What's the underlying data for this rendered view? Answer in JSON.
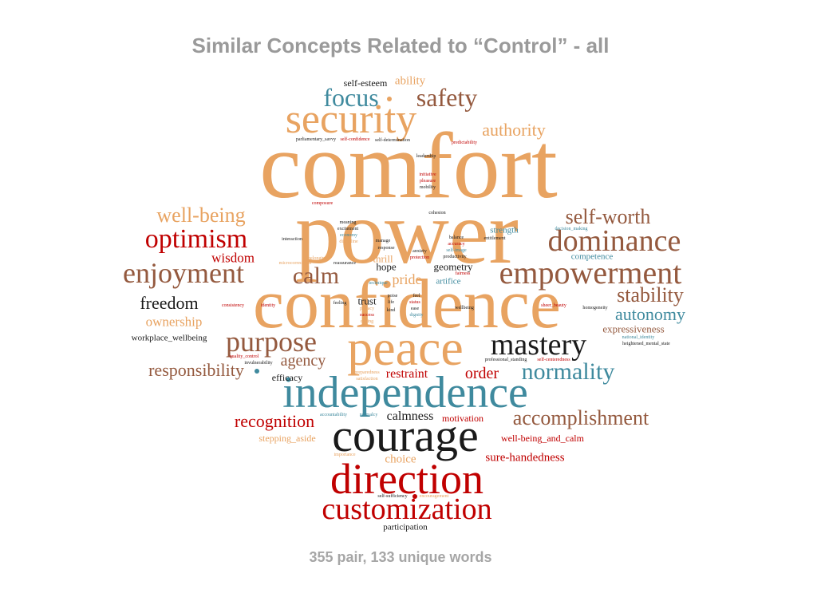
{
  "title": "Similar Concepts Related to “Control” - all",
  "footer": "355 pair, 133 unique words",
  "colors": {
    "orange": "#e8a361",
    "brown": "#94593e",
    "red": "#c00000",
    "teal": "#3f8a9e",
    "black": "#1a1a1a"
  },
  "words": [
    {
      "text": "comfort",
      "weight": 120,
      "color": "orange"
    },
    {
      "text": "power",
      "weight": 110,
      "color": "orange"
    },
    {
      "text": "confidence",
      "weight": 90,
      "color": "orange"
    },
    {
      "text": "peace",
      "weight": 64,
      "color": "orange"
    },
    {
      "text": "independence",
      "weight": 56,
      "color": "teal"
    },
    {
      "text": "courage",
      "weight": 58,
      "color": "black"
    },
    {
      "text": "security",
      "weight": 52,
      "color": "orange"
    },
    {
      "text": "direction",
      "weight": 52,
      "color": "red"
    },
    {
      "text": "empowerment",
      "weight": 40,
      "color": "brown"
    },
    {
      "text": "customization",
      "weight": 38,
      "color": "red"
    },
    {
      "text": "mastery",
      "weight": 38,
      "color": "black"
    },
    {
      "text": "dominance",
      "weight": 38,
      "color": "brown"
    },
    {
      "text": "enjoyment",
      "weight": 36,
      "color": "brown"
    },
    {
      "text": "optimism",
      "weight": 34,
      "color": "red"
    },
    {
      "text": "purpose",
      "weight": 34,
      "color": "brown"
    },
    {
      "text": "focus",
      "weight": 32,
      "color": "teal"
    },
    {
      "text": "safety",
      "weight": 32,
      "color": "brown"
    },
    {
      "text": "calm",
      "weight": 30,
      "color": "brown"
    },
    {
      "text": "normality",
      "weight": 30,
      "color": "teal"
    },
    {
      "text": "self-worth",
      "weight": 26,
      "color": "brown"
    },
    {
      "text": "well-being",
      "weight": 26,
      "color": "orange"
    },
    {
      "text": "stability",
      "weight": 26,
      "color": "brown"
    },
    {
      "text": "accomplishment",
      "weight": 26,
      "color": "brown"
    },
    {
      "text": "autonomy",
      "weight": 22,
      "color": "teal"
    },
    {
      "text": "recognition",
      "weight": 22,
      "color": "red"
    },
    {
      "text": "authority",
      "weight": 22,
      "color": "orange"
    },
    {
      "text": "freedom",
      "weight": 22,
      "color": "black"
    },
    {
      "text": "responsibility",
      "weight": 22,
      "color": "brown"
    },
    {
      "text": "agency",
      "weight": 20,
      "color": "brown"
    },
    {
      "text": "calmness",
      "weight": 16,
      "color": "black"
    },
    {
      "text": "order",
      "weight": 20,
      "color": "red"
    },
    {
      "text": "pride",
      "weight": 18,
      "color": "orange"
    },
    {
      "text": "ownership",
      "weight": 17,
      "color": "orange"
    },
    {
      "text": "wisdom",
      "weight": 17,
      "color": "red"
    },
    {
      "text": "restraint",
      "weight": 16,
      "color": "red"
    },
    {
      "text": "choice",
      "weight": 15,
      "color": "orange"
    },
    {
      "text": "sure-handedness",
      "weight": 15,
      "color": "red"
    },
    {
      "text": "ability",
      "weight": 15,
      "color": "orange"
    },
    {
      "text": "self-esteem",
      "weight": 12,
      "color": "black"
    },
    {
      "text": "trust",
      "weight": 13,
      "color": "black"
    },
    {
      "text": "hope",
      "weight": 13,
      "color": "black"
    },
    {
      "text": "thrill",
      "weight": 13,
      "color": "orange"
    },
    {
      "text": "geometry",
      "weight": 13,
      "color": "black"
    },
    {
      "text": "expressiveness",
      "weight": 13,
      "color": "brown"
    },
    {
      "text": "efficacy",
      "weight": 12,
      "color": "black"
    },
    {
      "text": "motivation",
      "weight": 12,
      "color": "red"
    },
    {
      "text": "stepping_aside",
      "weight": 12,
      "color": "orange"
    },
    {
      "text": "well-being_and_calm",
      "weight": 12,
      "color": "red"
    },
    {
      "text": "strength",
      "weight": 11,
      "color": "teal"
    },
    {
      "text": "competence",
      "weight": 11,
      "color": "teal"
    },
    {
      "text": "artifice",
      "weight": 11,
      "color": "teal"
    },
    {
      "text": "workplace_wellbeing",
      "weight": 11,
      "color": "black"
    },
    {
      "text": "participation",
      "weight": 11,
      "color": "black"
    },
    {
      "text": "parliamentary_savvy",
      "weight": 6,
      "color": "black"
    },
    {
      "text": "self-confidence",
      "weight": 6,
      "color": "red"
    },
    {
      "text": "self-determination",
      "weight": 6,
      "color": "black"
    },
    {
      "text": "predictability",
      "weight": 6,
      "color": "red"
    },
    {
      "text": "leadership",
      "weight": 6,
      "color": "black"
    },
    {
      "text": "initiative",
      "weight": 6,
      "color": "red"
    },
    {
      "text": "pleasure",
      "weight": 6,
      "color": "red"
    },
    {
      "text": "mobility",
      "weight": 6,
      "color": "black"
    },
    {
      "text": "composure",
      "weight": 6,
      "color": "red"
    },
    {
      "text": "cohesion",
      "weight": 6,
      "color": "black"
    },
    {
      "text": "meaning",
      "weight": 6,
      "color": "black"
    },
    {
      "text": "excitement",
      "weight": 6,
      "color": "black"
    },
    {
      "text": "economy",
      "weight": 6,
      "color": "teal"
    },
    {
      "text": "discipline",
      "weight": 6,
      "color": "orange"
    },
    {
      "text": "interaction",
      "weight": 6,
      "color": "black"
    },
    {
      "text": "manage",
      "weight": 6,
      "color": "black"
    },
    {
      "text": "response",
      "weight": 6,
      "color": "black"
    },
    {
      "text": "balance",
      "weight": 6,
      "color": "black"
    },
    {
      "text": "accuracy",
      "weight": 6,
      "color": "red"
    },
    {
      "text": "self-image",
      "weight": 6,
      "color": "teal"
    },
    {
      "text": "productivity",
      "weight": 6,
      "color": "black"
    },
    {
      "text": "entitlement",
      "weight": 6,
      "color": "black"
    },
    {
      "text": "decision_making",
      "weight": 6,
      "color": "teal"
    },
    {
      "text": "belonging",
      "weight": 6,
      "color": "orange"
    },
    {
      "text": "reassurance",
      "weight": 6,
      "color": "black"
    },
    {
      "text": "anxiety",
      "weight": 6,
      "color": "black"
    },
    {
      "text": "protection",
      "weight": 6,
      "color": "red"
    },
    {
      "text": "fairness",
      "weight": 6,
      "color": "red"
    },
    {
      "text": "microcorrections",
      "weight": 6,
      "color": "orange"
    },
    {
      "text": "technique",
      "weight": 6,
      "color": "teal"
    },
    {
      "text": "consistency",
      "weight": 6,
      "color": "red"
    },
    {
      "text": "identity",
      "weight": 6,
      "color": "red"
    },
    {
      "text": "feeling",
      "weight": 6,
      "color": "black"
    },
    {
      "text": "privacy",
      "weight": 6,
      "color": "orange"
    },
    {
      "text": "success",
      "weight": 6,
      "color": "red"
    },
    {
      "text": "coping",
      "weight": 6,
      "color": "orange"
    },
    {
      "text": "poise",
      "weight": 6,
      "color": "black"
    },
    {
      "text": "life",
      "weight": 6,
      "color": "black"
    },
    {
      "text": "kind",
      "weight": 6,
      "color": "black"
    },
    {
      "text": "feel",
      "weight": 6,
      "color": "black"
    },
    {
      "text": "status",
      "weight": 6,
      "color": "red"
    },
    {
      "text": "ease",
      "weight": 6,
      "color": "black"
    },
    {
      "text": "dignity",
      "weight": 6,
      "color": "teal"
    },
    {
      "text": "wellbeing",
      "weight": 6,
      "color": "black"
    },
    {
      "text": "sheer_beauty",
      "weight": 6,
      "color": "red"
    },
    {
      "text": "homogeneity",
      "weight": 6,
      "color": "black"
    },
    {
      "text": "national_identity",
      "weight": 6,
      "color": "teal"
    },
    {
      "text": "heightened_mental_state",
      "weight": 6,
      "color": "black"
    },
    {
      "text": "professional_standing",
      "weight": 6,
      "color": "black"
    },
    {
      "text": "self-centeredness",
      "weight": 6,
      "color": "red"
    },
    {
      "text": "quality_control",
      "weight": 6,
      "color": "red"
    },
    {
      "text": "invulnerability",
      "weight": 6,
      "color": "black"
    },
    {
      "text": "preparedness",
      "weight": 6,
      "color": "orange"
    },
    {
      "text": "satisfaction",
      "weight": 6,
      "color": "orange"
    },
    {
      "text": "accountability",
      "weight": 6,
      "color": "teal"
    },
    {
      "text": "normalcy",
      "weight": 6,
      "color": "teal"
    },
    {
      "text": "importance",
      "weight": 6,
      "color": "orange"
    },
    {
      "text": "self-sufficiency",
      "weight": 6,
      "color": "black"
    },
    {
      "text": "encouragement",
      "weight": 6,
      "color": "orange"
    }
  ]
}
